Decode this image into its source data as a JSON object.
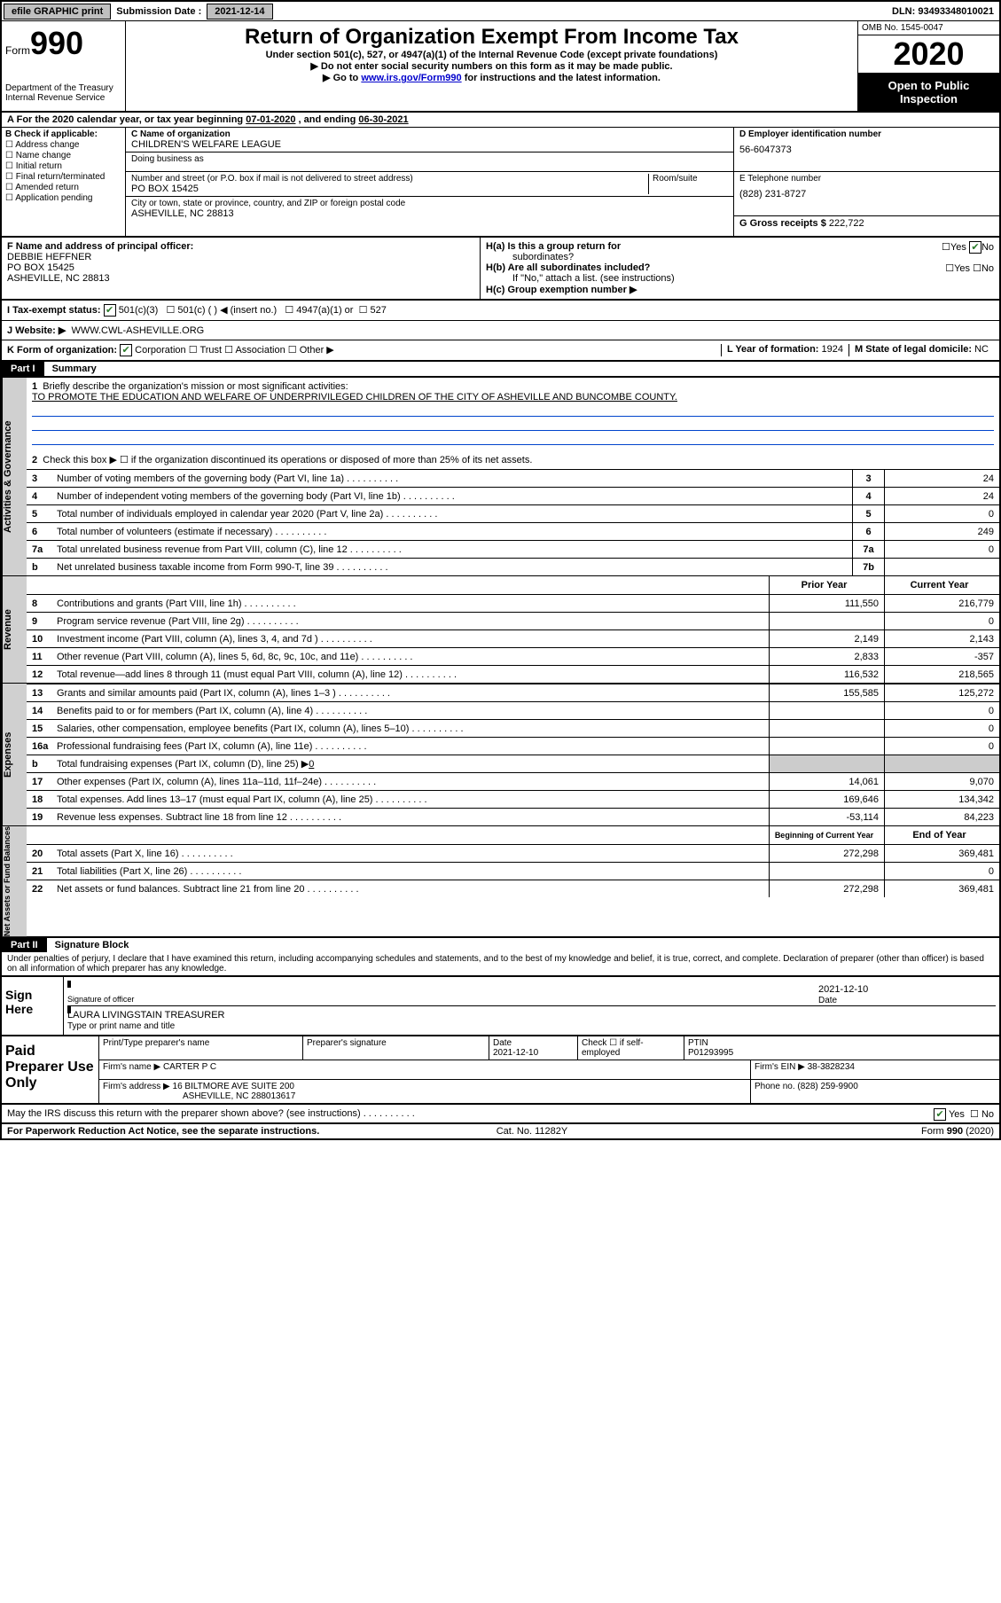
{
  "topbar": {
    "efile": "efile GRAPHIC print",
    "submission_label": "Submission Date :",
    "submission_date": "2021-12-14",
    "dln_label": "DLN:",
    "dln": "93493348010021"
  },
  "header": {
    "form_label": "Form",
    "form_num": "990",
    "dept1": "Department of the Treasury",
    "dept2": "Internal Revenue Service",
    "title": "Return of Organization Exempt From Income Tax",
    "sub1": "Under section 501(c), 527, or 4947(a)(1) of the Internal Revenue Code (except private foundations)",
    "sub2": "Do not enter social security numbers on this form as it may be made public.",
    "sub3_pre": "Go to ",
    "sub3_link": "www.irs.gov/Form990",
    "sub3_post": " for instructions and the latest information.",
    "omb": "OMB No. 1545-0047",
    "year": "2020",
    "open1": "Open to Public",
    "open2": "Inspection"
  },
  "section_a": {
    "text_pre": "For the 2020 calendar year, or tax year beginning ",
    "begin": "07-01-2020",
    "text_mid": " , and ending ",
    "end": "06-30-2021"
  },
  "block_b": {
    "check_label": "B Check if applicable:",
    "opts": [
      "Address change",
      "Name change",
      "Initial return",
      "Final return/terminated",
      "Amended return",
      "Application pending"
    ],
    "c_label": "C Name of organization",
    "org": "CHILDREN'S WELFARE LEAGUE",
    "dba_label": "Doing business as",
    "addr_label": "Number and street (or P.O. box if mail is not delivered to street address)",
    "room_label": "Room/suite",
    "addr": "PO BOX 15425",
    "city_label": "City or town, state or province, country, and ZIP or foreign postal code",
    "city": "ASHEVILLE, NC  28813",
    "d_label": "D Employer identification number",
    "ein": "56-6047373",
    "e_label": "E Telephone number",
    "phone": "(828) 231-8727",
    "g_label": "G Gross receipts $",
    "gross": "222,722"
  },
  "fgh": {
    "f_label": "F Name and address of principal officer:",
    "officer_name": "DEBBIE HEFFNER",
    "officer_addr1": "PO BOX 15425",
    "officer_addr2": "ASHEVILLE, NC  28813",
    "ha_label": "H(a)  Is this a group return for",
    "ha_sub": "subordinates?",
    "hb_label": "H(b)  Are all subordinates included?",
    "hb_note": "If \"No,\" attach a list. (see instructions)",
    "hc_label": "H(c)  Group exemption number ▶",
    "yes": "Yes",
    "no": "No"
  },
  "tax": {
    "i_label": "I  Tax-exempt status:",
    "opt1": "501(c)(3)",
    "opt2": "501(c) (  ) ◀ (insert no.)",
    "opt3": "4947(a)(1) or",
    "opt4": "527",
    "j_label": "J  Website: ▶",
    "website": "WWW.CWL-ASHEVILLE.ORG",
    "k_label": "K Form of organization:",
    "k_opts": [
      "Corporation",
      "Trust",
      "Association",
      "Other ▶"
    ],
    "l_label": "L Year of formation:",
    "l_val": "1924",
    "m_label": "M State of legal domicile:",
    "m_val": "NC"
  },
  "part1": {
    "hdr": "Part I",
    "title": "Summary",
    "q1": "Briefly describe the organization's mission or most significant activities:",
    "mission": "TO PROMOTE THE EDUCATION AND WELFARE OF UNDERPRIVILEGED CHILDREN OF THE CITY OF ASHEVILLE AND BUNCOMBE COUNTY.",
    "q2": "Check this box ▶ ☐  if the organization discontinued its operations or disposed of more than 25% of its net assets.",
    "vlabels": {
      "gov": "Activities & Governance",
      "rev": "Revenue",
      "exp": "Expenses",
      "net": "Net Assets or Fund Balances"
    },
    "lines_simple": [
      {
        "n": "3",
        "d": "Number of voting members of the governing body (Part VI, line 1a)",
        "b": "3",
        "v": "24"
      },
      {
        "n": "4",
        "d": "Number of independent voting members of the governing body (Part VI, line 1b)",
        "b": "4",
        "v": "24"
      },
      {
        "n": "5",
        "d": "Total number of individuals employed in calendar year 2020 (Part V, line 2a)",
        "b": "5",
        "v": "0"
      },
      {
        "n": "6",
        "d": "Total number of volunteers (estimate if necessary)",
        "b": "6",
        "v": "249"
      },
      {
        "n": "7a",
        "d": "Total unrelated business revenue from Part VIII, column (C), line 12",
        "b": "7a",
        "v": "0"
      },
      {
        "n": "b",
        "d": "Net unrelated business taxable income from Form 990-T, line 39",
        "b": "7b",
        "v": ""
      }
    ],
    "col_prior": "Prior Year",
    "col_current": "Current Year",
    "rev_lines": [
      {
        "n": "8",
        "d": "Contributions and grants (Part VIII, line 1h)",
        "p": "111,550",
        "c": "216,779"
      },
      {
        "n": "9",
        "d": "Program service revenue (Part VIII, line 2g)",
        "p": "",
        "c": "0"
      },
      {
        "n": "10",
        "d": "Investment income (Part VIII, column (A), lines 3, 4, and 7d )",
        "p": "2,149",
        "c": "2,143"
      },
      {
        "n": "11",
        "d": "Other revenue (Part VIII, column (A), lines 5, 6d, 8c, 9c, 10c, and 11e)",
        "p": "2,833",
        "c": "-357"
      },
      {
        "n": "12",
        "d": "Total revenue—add lines 8 through 11 (must equal Part VIII, column (A), line 12)",
        "p": "116,532",
        "c": "218,565"
      }
    ],
    "exp_lines": [
      {
        "n": "13",
        "d": "Grants and similar amounts paid (Part IX, column (A), lines 1–3 )",
        "p": "155,585",
        "c": "125,272"
      },
      {
        "n": "14",
        "d": "Benefits paid to or for members (Part IX, column (A), line 4)",
        "p": "",
        "c": "0"
      },
      {
        "n": "15",
        "d": "Salaries, other compensation, employee benefits (Part IX, column (A), lines 5–10)",
        "p": "",
        "c": "0"
      },
      {
        "n": "16a",
        "d": "Professional fundraising fees (Part IX, column (A), line 11e)",
        "p": "",
        "c": "0"
      }
    ],
    "exp_16b": {
      "n": "b",
      "d_pre": "Total fundraising expenses (Part IX, column (D), line 25) ▶",
      "d_val": "0"
    },
    "exp_lines2": [
      {
        "n": "17",
        "d": "Other expenses (Part IX, column (A), lines 11a–11d, 11f–24e)",
        "p": "14,061",
        "c": "9,070"
      },
      {
        "n": "18",
        "d": "Total expenses. Add lines 13–17 (must equal Part IX, column (A), line 25)",
        "p": "169,646",
        "c": "134,342"
      },
      {
        "n": "19",
        "d": "Revenue less expenses. Subtract line 18 from line 12",
        "p": "-53,114",
        "c": "84,223"
      }
    ],
    "col_begin": "Beginning of Current Year",
    "col_end": "End of Year",
    "net_lines": [
      {
        "n": "20",
        "d": "Total assets (Part X, line 16)",
        "p": "272,298",
        "c": "369,481"
      },
      {
        "n": "21",
        "d": "Total liabilities (Part X, line 26)",
        "p": "",
        "c": "0"
      },
      {
        "n": "22",
        "d": "Net assets or fund balances. Subtract line 21 from line 20",
        "p": "272,298",
        "c": "369,481"
      }
    ]
  },
  "part2": {
    "hdr": "Part II",
    "title": "Signature Block",
    "decl": "Under penalties of perjury, I declare that I have examined this return, including accompanying schedules and statements, and to the best of my knowledge and belief, it is true, correct, and complete. Declaration of preparer (other than officer) is based on all information of which preparer has any knowledge.",
    "sign_here": "Sign Here",
    "sig_officer": "Signature of officer",
    "sig_date": "2021-12-10",
    "date_label": "Date",
    "officer_text": "LAURA LIVINGSTAIN  TREASURER",
    "type_label": "Type or print name and title",
    "paid": "Paid Preparer Use Only",
    "prep_name_label": "Print/Type preparer's name",
    "prep_sig_label": "Preparer's signature",
    "prep_date_label": "Date",
    "prep_date": "2021-12-10",
    "check_if": "Check ☐ if self-employed",
    "ptin_label": "PTIN",
    "ptin": "P01293995",
    "firm_name_label": "Firm's name    ▶",
    "firm_name": "CARTER P C",
    "firm_ein_label": "Firm's EIN ▶",
    "firm_ein": "38-3828234",
    "firm_addr_label": "Firm's address ▶",
    "firm_addr1": "16 BILTMORE AVE SUITE 200",
    "firm_addr2": "ASHEVILLE, NC  288013617",
    "phone_label": "Phone no.",
    "firm_phone": "(828) 259-9900",
    "discuss": "May the IRS discuss this return with the preparer shown above? (see instructions)",
    "yes": "Yes",
    "no": "No"
  },
  "footer": {
    "left": "For Paperwork Reduction Act Notice, see the separate instructions.",
    "mid": "Cat. No. 11282Y",
    "right": "Form 990 (2020)"
  }
}
